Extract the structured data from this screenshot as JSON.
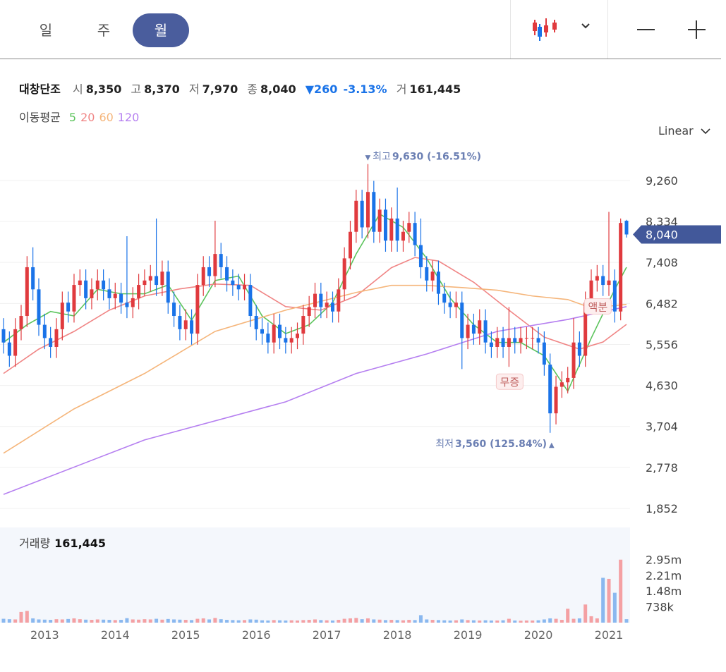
{
  "ui": {
    "tabs": [
      "일",
      "주",
      "월"
    ],
    "active_tab": 2,
    "scale": "Linear",
    "stock": {
      "name": "대창단조",
      "fields": [
        {
          "label": "시",
          "value": "8,350"
        },
        {
          "label": "고",
          "value": "8,370"
        },
        {
          "label": "저",
          "value": "7,970"
        },
        {
          "label": "종",
          "value": "8,040"
        }
      ],
      "change": "▼260",
      "change_pct": "-3.13%",
      "volume_label": "거",
      "volume": "161,445"
    }
  },
  "chart_data": {
    "type": "candlestick",
    "xlim": [
      -0.6,
      106.6
    ],
    "xticks": [
      {
        "value": 7,
        "label": "2013"
      },
      {
        "value": 19,
        "label": "2014"
      },
      {
        "value": 31,
        "label": "2015"
      },
      {
        "value": 43,
        "label": "2016"
      },
      {
        "value": 55,
        "label": "2017"
      },
      {
        "value": 67,
        "label": "2018"
      },
      {
        "value": 79,
        "label": "2019"
      },
      {
        "value": 91,
        "label": "2020"
      },
      {
        "value": 103,
        "label": "2021"
      }
    ],
    "ylim": [
      1550,
      10150
    ],
    "yticks": [
      {
        "value": 9260,
        "label": "9,260"
      },
      {
        "value": 8334,
        "label": "8,334"
      },
      {
        "value": 7408,
        "label": "7,408"
      },
      {
        "value": 6482,
        "label": "6,482"
      },
      {
        "value": 5556,
        "label": "5,556"
      },
      {
        "value": 4630,
        "label": "4,630"
      },
      {
        "value": 3704,
        "label": "3,704"
      },
      {
        "value": 2778,
        "label": "2,778"
      },
      {
        "value": 1852,
        "label": "1,852"
      }
    ],
    "grid": true,
    "up_color": "#e03a3e",
    "down_color": "#1a73e8",
    "candles": {
      "open": [
        5900,
        5600,
        5300,
        5900,
        6200,
        7300,
        6800,
        6000,
        5700,
        5500,
        5900,
        6500,
        6300,
        6900,
        7000,
        6600,
        6800,
        7000,
        6800,
        6600,
        6700,
        6500,
        6400,
        6600,
        6900,
        7000,
        7100,
        6900,
        7200,
        6500,
        6200,
        5900,
        6100,
        5800,
        6900,
        7300,
        7100,
        7600,
        7300,
        7000,
        6900,
        6800,
        6900,
        6200,
        5900,
        5800,
        5600,
        6000,
        5700,
        5600,
        5700,
        5800,
        6200,
        6400,
        6700,
        6400,
        6500,
        6300,
        6800,
        7500,
        8100,
        8800,
        8200,
        9000,
        8100,
        8600,
        7900,
        8400,
        7900,
        8100,
        8300,
        7800,
        7300,
        7000,
        7200,
        6700,
        6500,
        6400,
        6500,
        5700,
        6000,
        5800,
        6100,
        5600,
        5500,
        5700,
        5500,
        5700,
        5600,
        5700,
        5700,
        5700,
        5600,
        5100,
        4000,
        4600,
        4700,
        4800,
        5600,
        5300,
        6500,
        7000,
        7100,
        6900,
        7000,
        6300,
        8350
      ],
      "high": [
        6150,
        5850,
        6150,
        6450,
        7550,
        7750,
        7050,
        6250,
        5950,
        6150,
        6750,
        6750,
        7150,
        7250,
        7250,
        7050,
        7250,
        7250,
        7050,
        6950,
        6950,
        8000,
        6850,
        7150,
        7250,
        7350,
        8400,
        7450,
        7450,
        6750,
        6450,
        6350,
        6350,
        7150,
        7550,
        7550,
        8350,
        7850,
        7550,
        7250,
        7150,
        7150,
        7150,
        6450,
        6150,
        6050,
        6250,
        6250,
        5950,
        5950,
        6050,
        6450,
        6650,
        6950,
        6950,
        6750,
        6750,
        7050,
        7750,
        8350,
        9050,
        9050,
        9630,
        9250,
        8850,
        8850,
        8650,
        9100,
        8350,
        8550,
        8550,
        8400,
        7550,
        7450,
        7450,
        6950,
        6750,
        6750,
        6750,
        6250,
        6250,
        6350,
        6350,
        5850,
        5950,
        5950,
        6400,
        5950,
        5950,
        5950,
        5950,
        5950,
        5850,
        5350,
        4850,
        4950,
        5050,
        6150,
        5850,
        6750,
        7250,
        7350,
        7350,
        8550,
        7250,
        8400,
        8370
      ],
      "low": [
        5350,
        5050,
        5050,
        5650,
        5950,
        6550,
        5750,
        5450,
        5250,
        5250,
        5650,
        6050,
        6050,
        6650,
        6350,
        6350,
        6550,
        6550,
        6350,
        6350,
        6250,
        6150,
        6150,
        6350,
        6650,
        6750,
        6650,
        6650,
        6250,
        5950,
        5650,
        5650,
        5550,
        5550,
        6650,
        6850,
        6850,
        7050,
        6750,
        6650,
        6550,
        6550,
        5950,
        5650,
        5550,
        5350,
        5350,
        5450,
        5350,
        5350,
        5450,
        5550,
        5950,
        6150,
        6150,
        6150,
        6050,
        6050,
        6550,
        7250,
        7850,
        7950,
        7950,
        7850,
        7850,
        7650,
        7650,
        7650,
        7650,
        7850,
        7550,
        7050,
        6750,
        6750,
        6450,
        6250,
        6150,
        6150,
        5000,
        5450,
        5550,
        5550,
        5350,
        5250,
        5250,
        5250,
        5050,
        5350,
        5350,
        5450,
        5450,
        5350,
        4850,
        3560,
        3750,
        4350,
        4450,
        4550,
        5050,
        5050,
        6250,
        6750,
        6650,
        6650,
        6050,
        6100,
        7970
      ],
      "close": [
        5600,
        5300,
        5900,
        6200,
        7300,
        6800,
        6000,
        5700,
        5500,
        5900,
        6500,
        6300,
        6900,
        7000,
        6600,
        6800,
        7000,
        6800,
        6600,
        6700,
        6500,
        6400,
        6600,
        6900,
        7000,
        7100,
        6900,
        7200,
        6500,
        6200,
        5900,
        6100,
        5800,
        6900,
        7300,
        7100,
        7600,
        7300,
        7000,
        6900,
        6800,
        6900,
        6200,
        5900,
        5800,
        5600,
        6000,
        5700,
        5600,
        5700,
        5800,
        6200,
        6400,
        6700,
        6400,
        6500,
        6300,
        6800,
        7500,
        8100,
        8800,
        8200,
        9000,
        8100,
        8600,
        7900,
        8400,
        7900,
        8100,
        8300,
        7800,
        7300,
        7000,
        7200,
        6700,
        6500,
        6400,
        6500,
        5700,
        6000,
        5800,
        6100,
        5600,
        5500,
        5700,
        5500,
        5700,
        5600,
        5700,
        5700,
        5700,
        5600,
        5100,
        4000,
        4600,
        4700,
        4800,
        5600,
        5300,
        6500,
        7000,
        7100,
        6900,
        7000,
        6300,
        8300,
        8040
      ]
    },
    "last_label": "8,040",
    "moving_averages": {
      "label": "이동평균",
      "series": [
        {
          "name": "5",
          "color": "#5cc45c",
          "x": [
            0,
            4,
            8,
            12,
            16,
            20,
            24,
            28,
            32,
            36,
            40,
            44,
            48,
            52,
            56,
            60,
            64,
            68,
            72,
            76,
            80,
            84,
            88,
            92,
            96,
            100,
            104,
            106
          ],
          "values": [
            5600,
            6000,
            6300,
            6200,
            6800,
            6700,
            6700,
            6900,
            6100,
            7000,
            7100,
            6200,
            5800,
            6000,
            6500,
            7600,
            8500,
            8200,
            7500,
            6600,
            6000,
            5600,
            5600,
            5300,
            4500,
            5700,
            6800,
            7300
          ]
        },
        {
          "name": "20",
          "color": "#f08585",
          "x": [
            0,
            6,
            12,
            18,
            24,
            30,
            36,
            42,
            48,
            54,
            60,
            66,
            70,
            74,
            80,
            86,
            92,
            98,
            102,
            106
          ],
          "values": [
            4900,
            5450,
            5850,
            6330,
            6650,
            6810,
            6920,
            6890,
            6410,
            6330,
            6650,
            7290,
            7520,
            7440,
            6960,
            6330,
            5720,
            5450,
            5610,
            6010
          ]
        },
        {
          "name": "60",
          "color": "#f5b57a",
          "x": [
            0,
            12,
            24,
            36,
            48,
            60,
            66,
            72,
            78,
            84,
            90,
            96,
            100,
            106
          ],
          "values": [
            3100,
            4100,
            4900,
            5850,
            6330,
            6730,
            6890,
            6890,
            6840,
            6780,
            6650,
            6570,
            6380,
            6460
          ]
        },
        {
          "name": "120",
          "color": "#b57ff0",
          "x": [
            0,
            24,
            48,
            60,
            72,
            84,
            96,
            106
          ],
          "values": [
            2170,
            3400,
            4260,
            4900,
            5340,
            5850,
            6120,
            6410
          ]
        }
      ]
    },
    "high_annotation": {
      "marker": "▼",
      "label": "최고",
      "value_label": "9,630 (-16.51%)"
    },
    "low_annotation": {
      "label": "최저",
      "value_label": "3,560 (125.84%)",
      "marker": "▲"
    },
    "events": [
      {
        "label": "무증",
        "index": 86
      },
      {
        "label": "액분",
        "index": 101
      }
    ],
    "volume": {
      "label": "거래량",
      "value_label": "161,445",
      "up_color": "#f4a0a3",
      "down_color": "#8ab8ef",
      "ylim": [
        0,
        4460000
      ],
      "yticks": [
        {
          "value": 2950000,
          "label": "2.95m"
        },
        {
          "value": 2210000,
          "label": "2.21m"
        },
        {
          "value": 1480000,
          "label": "1.48m"
        },
        {
          "value": 738000,
          "label": "738k"
        }
      ],
      "values": [
        180000,
        160000,
        150000,
        500000,
        550000,
        200000,
        150000,
        140000,
        130000,
        160000,
        150000,
        170000,
        200000,
        160000,
        140000,
        130000,
        150000,
        140000,
        130000,
        120000,
        130000,
        210000,
        150000,
        140000,
        160000,
        150000,
        180000,
        140000,
        170000,
        150000,
        140000,
        130000,
        120000,
        180000,
        200000,
        150000,
        220000,
        160000,
        130000,
        120000,
        110000,
        120000,
        150000,
        140000,
        110000,
        100000,
        120000,
        110000,
        100000,
        110000,
        100000,
        120000,
        130000,
        150000,
        120000,
        110000,
        100000,
        130000,
        180000,
        200000,
        220000,
        160000,
        200000,
        150000,
        140000,
        120000,
        130000,
        120000,
        110000,
        130000,
        120000,
        350000,
        150000,
        130000,
        120000,
        110000,
        100000,
        110000,
        150000,
        120000,
        110000,
        100000,
        110000,
        100000,
        100000,
        110000,
        180000,
        100000,
        90000,
        100000,
        100000,
        110000,
        150000,
        200000,
        180000,
        130000,
        650000,
        180000,
        200000,
        850000,
        300000,
        200000,
        2100000,
        2050000,
        1400000,
        2950000,
        161445
      ]
    }
  }
}
